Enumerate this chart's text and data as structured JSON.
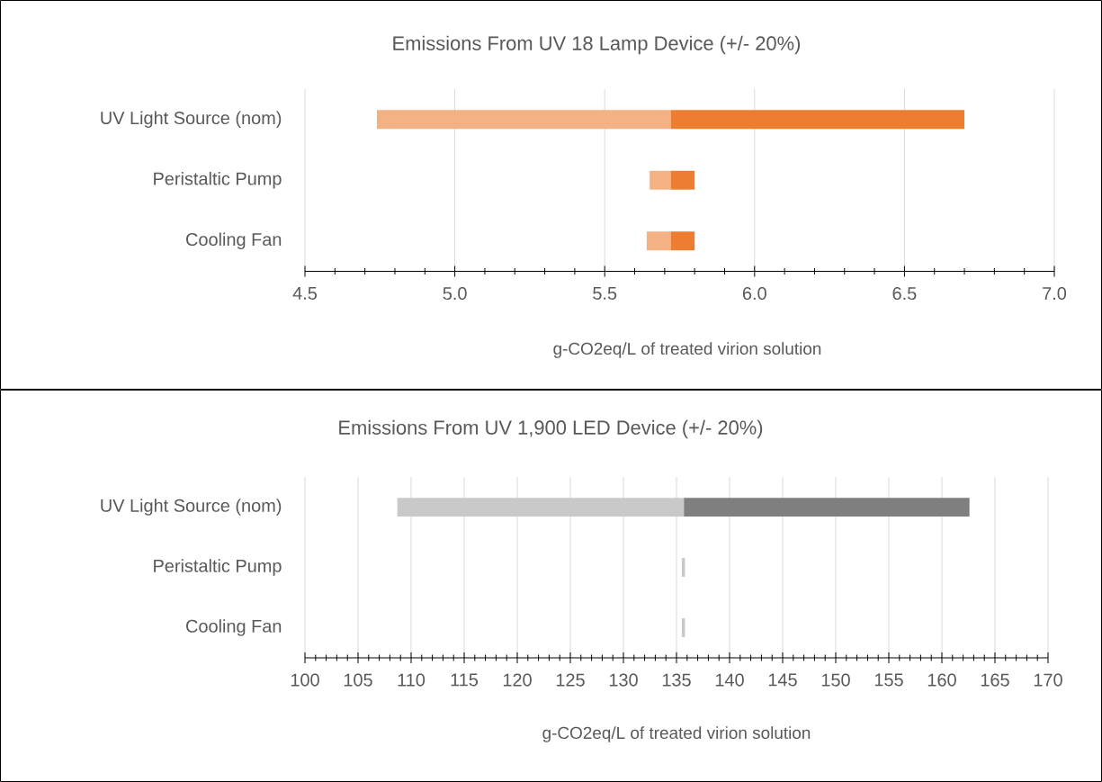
{
  "chart_data": [
    {
      "type": "bar",
      "orientation": "horizontal",
      "title": "Emissions From UV 18 Lamp Device (+/- 20%)",
      "xlabel": "g-CO2eq/L of treated virion solution",
      "categories": [
        "UV Light Source (nom)",
        "Peristaltic Pump",
        "Cooling Fan"
      ],
      "series": [
        {
          "color": "#f4b183",
          "base": [
            4.74,
            5.65,
            5.64
          ],
          "values": [
            0.98,
            0.07,
            0.08
          ]
        },
        {
          "color": "#ed7d31",
          "base": [
            5.72,
            5.72,
            5.72
          ],
          "values": [
            0.98,
            0.08,
            0.08
          ]
        }
      ],
      "xlim": [
        4.5,
        7.0
      ],
      "xticks": [
        4.5,
        {
          "value": 4.6,
          "label": null
        },
        {
          "value": 4.7,
          "label": null
        },
        {
          "value": 4.8,
          "label": null
        },
        {
          "value": 4.9,
          "label": null
        },
        {
          "value": 5,
          "label": "5.0"
        },
        {
          "value": 5.1,
          "label": null
        },
        {
          "value": 5.2,
          "label": null
        },
        {
          "value": 5.3,
          "label": null
        },
        {
          "value": 5.4,
          "label": null
        },
        5.5,
        {
          "value": 5.6,
          "label": null
        },
        {
          "value": 5.7,
          "label": null
        },
        {
          "value": 5.8,
          "label": null
        },
        {
          "value": 5.9,
          "label": null
        },
        {
          "value": 6,
          "label": "6.0"
        },
        {
          "value": 6.1,
          "label": null
        },
        {
          "value": 6.2,
          "label": null
        },
        {
          "value": 6.3,
          "label": null
        },
        {
          "value": 6.4,
          "label": null
        },
        6.5,
        {
          "value": 6.6,
          "label": null
        },
        {
          "value": 6.7,
          "label": null
        },
        {
          "value": 6.8,
          "label": null
        },
        {
          "value": 6.9,
          "label": null
        },
        {
          "value": 7,
          "label": "7.0"
        }
      ],
      "grid": "x"
    },
    {
      "type": "bar",
      "orientation": "horizontal",
      "title": "Emissions From UV 1,900 LED Device (+/- 20%)",
      "xlabel": "g-CO2eq/L of treated virion solution",
      "categories": [
        "UV Light Source (nom)",
        "Peristaltic Pump",
        "Cooling Fan"
      ],
      "series": [
        {
          "color": "#c9c9c9",
          "base": [
            108.7,
            135.5,
            135.5
          ],
          "values": [
            27.0,
            0.3,
            0.3
          ]
        },
        {
          "color": "#7f7f7f",
          "base": [
            135.7,
            null,
            null
          ],
          "values": [
            26.9,
            null,
            null
          ]
        }
      ],
      "xlim": [
        100,
        170
      ],
      "xticks": [
        100,
        {
          "value": 101,
          "label": null
        },
        {
          "value": 102,
          "label": null
        },
        {
          "value": 103,
          "label": null
        },
        {
          "value": 104,
          "label": null
        },
        105,
        {
          "value": 106,
          "label": null
        },
        {
          "value": 107,
          "label": null
        },
        {
          "value": 108,
          "label": null
        },
        {
          "value": 109,
          "label": null
        },
        110,
        {
          "value": 111,
          "label": null
        },
        {
          "value": 112,
          "label": null
        },
        {
          "value": 113,
          "label": null
        },
        {
          "value": 114,
          "label": null
        },
        115,
        {
          "value": 116,
          "label": null
        },
        {
          "value": 117,
          "label": null
        },
        {
          "value": 118,
          "label": null
        },
        {
          "value": 119,
          "label": null
        },
        120,
        {
          "value": 121,
          "label": null
        },
        {
          "value": 122,
          "label": null
        },
        {
          "value": 123,
          "label": null
        },
        {
          "value": 124,
          "label": null
        },
        125,
        {
          "value": 126,
          "label": null
        },
        {
          "value": 127,
          "label": null
        },
        {
          "value": 128,
          "label": null
        },
        {
          "value": 129,
          "label": null
        },
        130,
        {
          "value": 131,
          "label": null
        },
        {
          "value": 132,
          "label": null
        },
        {
          "value": 133,
          "label": null
        },
        {
          "value": 134,
          "label": null
        },
        135,
        {
          "value": 136,
          "label": null
        },
        {
          "value": 137,
          "label": null
        },
        {
          "value": 138,
          "label": null
        },
        {
          "value": 139,
          "label": null
        },
        140,
        {
          "value": 141,
          "label": null
        },
        {
          "value": 142,
          "label": null
        },
        {
          "value": 143,
          "label": null
        },
        {
          "value": 144,
          "label": null
        },
        145,
        {
          "value": 146,
          "label": null
        },
        {
          "value": 147,
          "label": null
        },
        {
          "value": 148,
          "label": null
        },
        {
          "value": 149,
          "label": null
        },
        150,
        {
          "value": 151,
          "label": null
        },
        {
          "value": 152,
          "label": null
        },
        {
          "value": 153,
          "label": null
        },
        {
          "value": 154,
          "label": null
        },
        155,
        {
          "value": 156,
          "label": null
        },
        {
          "value": 157,
          "label": null
        },
        {
          "value": 158,
          "label": null
        },
        {
          "value": 159,
          "label": null
        },
        160,
        {
          "value": 161,
          "label": null
        },
        {
          "value": 162,
          "label": null
        },
        {
          "value": 163,
          "label": null
        },
        {
          "value": 164,
          "label": null
        },
        165,
        {
          "value": 166,
          "label": null
        },
        {
          "value": 167,
          "label": null
        },
        {
          "value": 168,
          "label": null
        },
        {
          "value": 169,
          "label": null
        },
        170
      ],
      "grid": "x"
    }
  ]
}
